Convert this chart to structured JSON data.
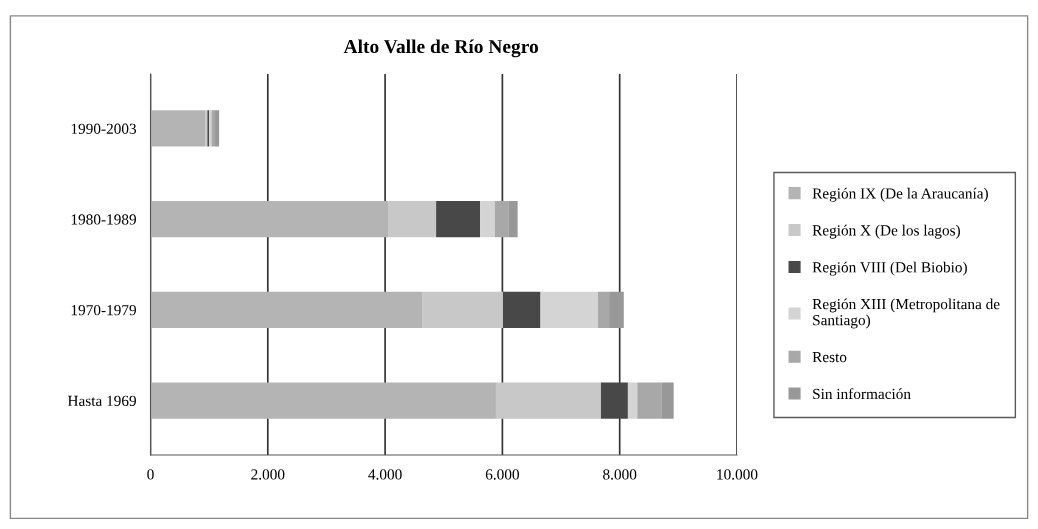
{
  "chart_data": {
    "type": "bar",
    "orientation": "horizontal",
    "stacked": true,
    "title": "Alto Valle de Río Negro",
    "categories": [
      "1990-2003",
      "1980-1989",
      "1970-1979",
      "Hasta 1969"
    ],
    "series": [
      {
        "name": "Región IX (De la Araucanía)",
        "color": "#b4b4b4",
        "values": [
          930,
          4050,
          4630,
          5890
        ]
      },
      {
        "name": "Región X (De los lagos)",
        "color": "#c8c8c8",
        "values": [
          40,
          820,
          1380,
          1790
        ]
      },
      {
        "name": "Región VIII (Del Biobio)",
        "color": "#484848",
        "values": [
          30,
          750,
          640,
          460
        ]
      },
      {
        "name": "Región XIII (Metropolitana de Santiago)",
        "color": "#d4d4d4",
        "values": [
          40,
          250,
          980,
          160
        ]
      },
      {
        "name": "Resto",
        "color": "#a8a8a8",
        "values": [
          60,
          240,
          190,
          420
        ]
      },
      {
        "name": "Sin información",
        "color": "#989898",
        "values": [
          70,
          150,
          250,
          200
        ]
      }
    ],
    "xlim": [
      0,
      10000
    ],
    "xticks": [
      0,
      {
        "value": 2000,
        "label": "2.000"
      },
      {
        "value": 4000,
        "label": "4.000"
      },
      {
        "value": 6000,
        "label": "6.000"
      },
      {
        "value": 8000,
        "label": "8.000"
      },
      {
        "value": 10000,
        "label": "10.000"
      }
    ],
    "grid": "x",
    "legend": "right"
  }
}
